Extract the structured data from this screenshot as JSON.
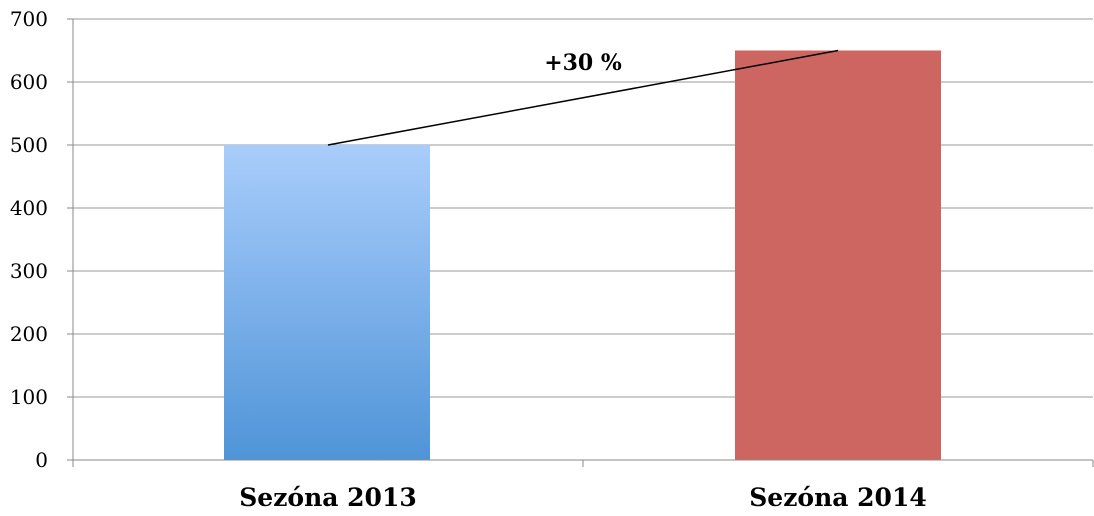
{
  "chart_data": {
    "type": "bar",
    "categories": [
      "Sezóna 2013",
      "Sezóna 2014"
    ],
    "values": [
      500,
      650
    ],
    "colors": [
      "#5b9bd5",
      "#cd6660"
    ],
    "ylim": [
      0,
      700
    ],
    "yticks": [
      0,
      100,
      200,
      300,
      400,
      500,
      600,
      700
    ],
    "grid": true,
    "annotation": {
      "text": "+30 %",
      "from_category": 0,
      "to_category": 1
    }
  }
}
